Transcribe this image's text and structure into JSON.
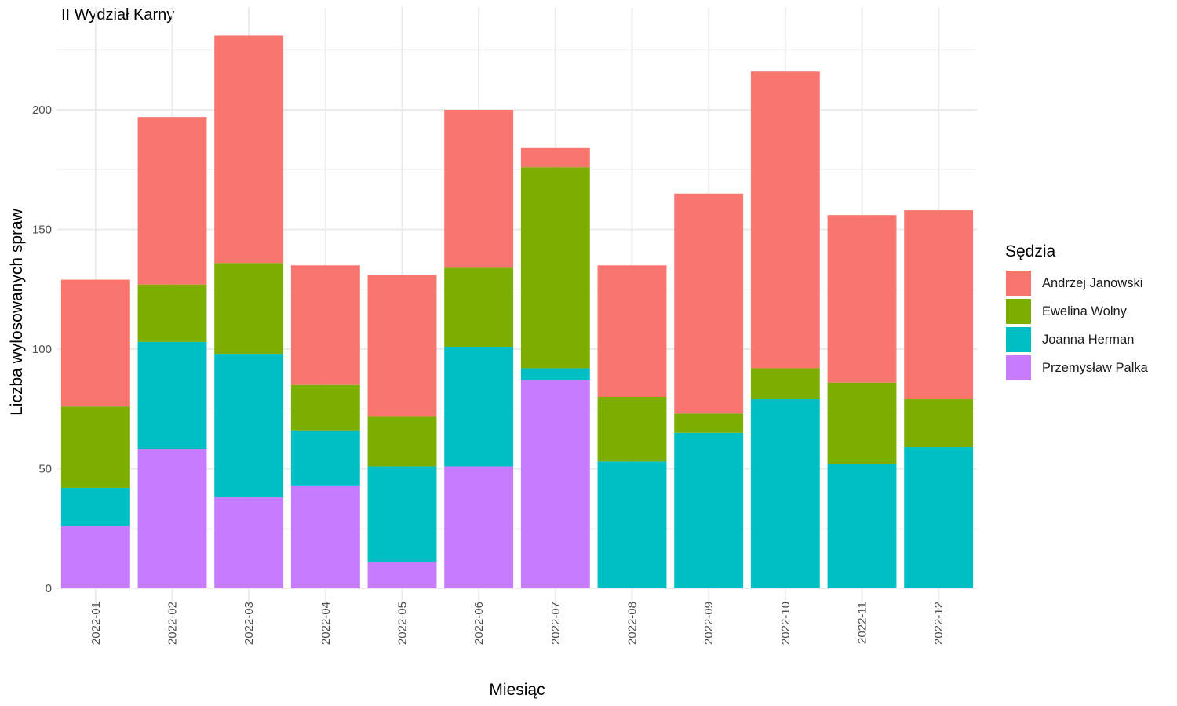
{
  "chart_data": {
    "type": "bar",
    "stacked": true,
    "title": "II Wydział Karny",
    "xlabel": "Miesiąc",
    "ylabel": "Liczba wylosowanych spraw",
    "ylim": [
      0,
      240
    ],
    "yticks": [
      0,
      50,
      100,
      150,
      200
    ],
    "grid": true,
    "legend_title": "Sędzia",
    "legend_position": "right",
    "categories": [
      "2022-01",
      "2022-02",
      "2022-03",
      "2022-04",
      "2022-05",
      "2022-06",
      "2022-07",
      "2022-08",
      "2022-09",
      "2022-10",
      "2022-11",
      "2022-12"
    ],
    "series": [
      {
        "name": "Andrzej Janowski",
        "color": "#F8766D",
        "values": [
          53,
          70,
          95,
          50,
          59,
          66,
          8,
          55,
          92,
          124,
          70,
          79
        ]
      },
      {
        "name": "Ewelina Wolny",
        "color": "#7CAE00",
        "values": [
          34,
          24,
          38,
          19,
          21,
          33,
          84,
          27,
          8,
          13,
          34,
          20
        ]
      },
      {
        "name": "Joanna Herman",
        "color": "#00BFC4",
        "values": [
          16,
          45,
          60,
          23,
          40,
          50,
          5,
          53,
          65,
          79,
          52,
          59
        ]
      },
      {
        "name": "Przemysław Palka",
        "color": "#C77CFF",
        "values": [
          26,
          58,
          38,
          43,
          11,
          51,
          87,
          0,
          0,
          0,
          0,
          0
        ]
      }
    ]
  }
}
